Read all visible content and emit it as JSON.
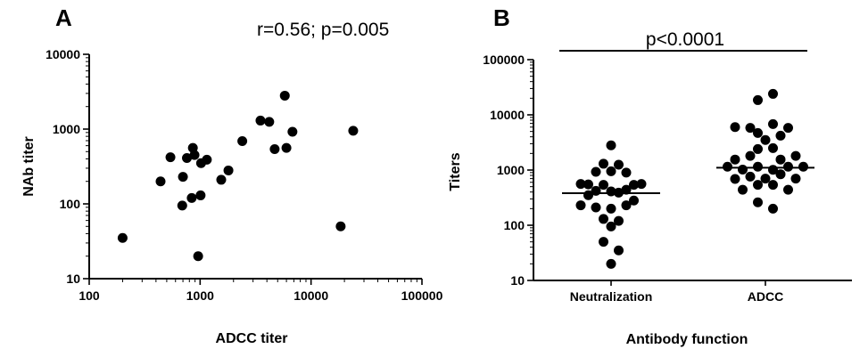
{
  "chart_data": [
    {
      "panel": "A",
      "type": "scatter",
      "annotation": "r=0.56; p=0.005",
      "xlabel": "ADCC titer",
      "ylabel": "NAb titer",
      "x_scale": "log",
      "y_scale": "log",
      "xlim": [
        100,
        100000
      ],
      "ylim": [
        10,
        10000
      ],
      "x_ticks": [
        "100",
        "1000",
        "10000",
        "100000"
      ],
      "y_ticks": [
        "10",
        "100",
        "1000",
        "10000"
      ],
      "grid": false,
      "points": [
        {
          "x": 200,
          "y": 35
        },
        {
          "x": 440,
          "y": 200
        },
        {
          "x": 540,
          "y": 420
        },
        {
          "x": 690,
          "y": 95
        },
        {
          "x": 700,
          "y": 230
        },
        {
          "x": 760,
          "y": 410
        },
        {
          "x": 840,
          "y": 120
        },
        {
          "x": 860,
          "y": 560
        },
        {
          "x": 890,
          "y": 450
        },
        {
          "x": 960,
          "y": 20
        },
        {
          "x": 1010,
          "y": 130
        },
        {
          "x": 1020,
          "y": 350
        },
        {
          "x": 1150,
          "y": 390
        },
        {
          "x": 1550,
          "y": 210
        },
        {
          "x": 1800,
          "y": 280
        },
        {
          "x": 2400,
          "y": 690
        },
        {
          "x": 3500,
          "y": 1300
        },
        {
          "x": 4200,
          "y": 1250
        },
        {
          "x": 4700,
          "y": 540
        },
        {
          "x": 5800,
          "y": 2800
        },
        {
          "x": 6000,
          "y": 560
        },
        {
          "x": 6800,
          "y": 920
        },
        {
          "x": 18500,
          "y": 50
        },
        {
          "x": 24000,
          "y": 950
        }
      ]
    },
    {
      "panel": "B",
      "type": "scatter",
      "annotation": "p<0.0001",
      "xlabel": "Antibody function",
      "ylabel": "Titers",
      "y_scale": "log",
      "ylim": [
        10,
        100000
      ],
      "y_ticks": [
        "10",
        "100",
        "1000",
        "10000",
        "100000"
      ],
      "categories": [
        "Neutralization",
        "ADCC"
      ],
      "grid": false,
      "series": [
        {
          "category": "Neutralization",
          "median": 380,
          "points": [
            {
              "offset": 0,
              "y": 2800
            },
            {
              "offset": -1,
              "y": 1300
            },
            {
              "offset": 1,
              "y": 1250
            },
            {
              "offset": -2,
              "y": 930
            },
            {
              "offset": 0,
              "y": 950
            },
            {
              "offset": 2,
              "y": 900
            },
            {
              "offset": -4,
              "y": 560
            },
            {
              "offset": -3,
              "y": 550
            },
            {
              "offset": -1,
              "y": 540
            },
            {
              "offset": 3,
              "y": 540
            },
            {
              "offset": 4,
              "y": 560
            },
            {
              "offset": -2,
              "y": 420
            },
            {
              "offset": 0,
              "y": 410
            },
            {
              "offset": 2,
              "y": 440
            },
            {
              "offset": -3,
              "y": 350
            },
            {
              "offset": 1,
              "y": 390
            },
            {
              "offset": 3,
              "y": 280
            },
            {
              "offset": -4,
              "y": 230
            },
            {
              "offset": -2,
              "y": 210
            },
            {
              "offset": 0,
              "y": 200
            },
            {
              "offset": 2,
              "y": 230
            },
            {
              "offset": -1,
              "y": 130
            },
            {
              "offset": 1,
              "y": 120
            },
            {
              "offset": 0,
              "y": 95
            },
            {
              "offset": -1,
              "y": 50
            },
            {
              "offset": 1,
              "y": 35
            },
            {
              "offset": 0,
              "y": 20
            }
          ]
        },
        {
          "category": "ADCC",
          "median": 1100,
          "points": [
            {
              "offset": 1,
              "y": 24000
            },
            {
              "offset": -1,
              "y": 18500
            },
            {
              "offset": -4,
              "y": 6000
            },
            {
              "offset": -2,
              "y": 5800
            },
            {
              "offset": 1,
              "y": 6800
            },
            {
              "offset": 3,
              "y": 5800
            },
            {
              "offset": -1,
              "y": 4700
            },
            {
              "offset": 2,
              "y": 4200
            },
            {
              "offset": 0,
              "y": 3500
            },
            {
              "offset": -1,
              "y": 2400
            },
            {
              "offset": 1,
              "y": 2500
            },
            {
              "offset": -4,
              "y": 1550
            },
            {
              "offset": -2,
              "y": 1800
            },
            {
              "offset": 2,
              "y": 1550
            },
            {
              "offset": 4,
              "y": 1800
            },
            {
              "offset": -5,
              "y": 1150
            },
            {
              "offset": -3,
              "y": 1020
            },
            {
              "offset": -1,
              "y": 1150
            },
            {
              "offset": 1,
              "y": 1010
            },
            {
              "offset": 3,
              "y": 1150
            },
            {
              "offset": 5,
              "y": 1150
            },
            {
              "offset": -4,
              "y": 690
            },
            {
              "offset": -2,
              "y": 760
            },
            {
              "offset": 0,
              "y": 700
            },
            {
              "offset": 2,
              "y": 840
            },
            {
              "offset": 4,
              "y": 700
            },
            {
              "offset": -3,
              "y": 440
            },
            {
              "offset": -1,
              "y": 540
            },
            {
              "offset": 1,
              "y": 540
            },
            {
              "offset": 3,
              "y": 440
            },
            {
              "offset": -1,
              "y": 260
            },
            {
              "offset": 1,
              "y": 200
            }
          ]
        }
      ]
    }
  ]
}
